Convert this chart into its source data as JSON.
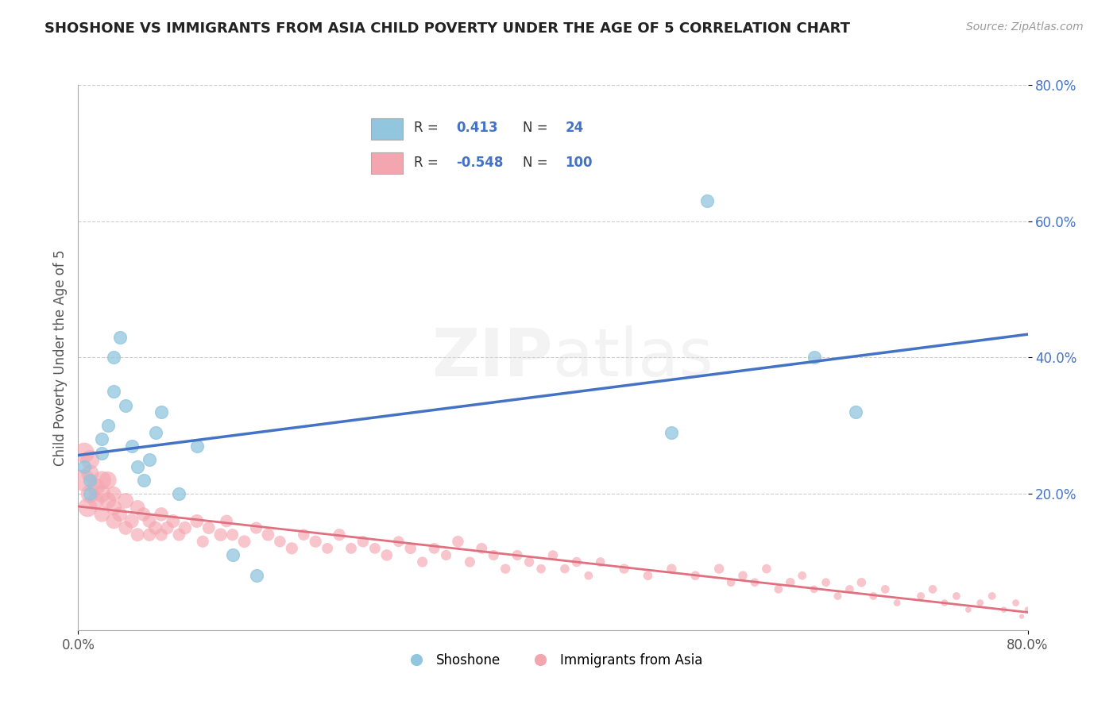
{
  "title": "SHOSHONE VS IMMIGRANTS FROM ASIA CHILD POVERTY UNDER THE AGE OF 5 CORRELATION CHART",
  "source": "Source: ZipAtlas.com",
  "ylabel": "Child Poverty Under the Age of 5",
  "xlim": [
    0.0,
    0.8
  ],
  "ylim": [
    0.0,
    0.8
  ],
  "blue_R": 0.413,
  "blue_N": 24,
  "pink_R": -0.548,
  "pink_N": 100,
  "shoshone_color": "#92C5DE",
  "immigrants_color": "#F4A6B0",
  "blue_line_color": "#4472C4",
  "pink_line_color": "#E07080",
  "watermark_zip": "ZIP",
  "watermark_atlas": "atlas",
  "shoshone_x": [
    0.005,
    0.01,
    0.01,
    0.02,
    0.02,
    0.025,
    0.03,
    0.03,
    0.035,
    0.04,
    0.045,
    0.05,
    0.055,
    0.06,
    0.065,
    0.07,
    0.085,
    0.1,
    0.13,
    0.15,
    0.5,
    0.53,
    0.62,
    0.655
  ],
  "shoshone_y": [
    0.24,
    0.2,
    0.22,
    0.26,
    0.28,
    0.3,
    0.35,
    0.4,
    0.43,
    0.33,
    0.27,
    0.24,
    0.22,
    0.25,
    0.29,
    0.32,
    0.2,
    0.27,
    0.11,
    0.08,
    0.29,
    0.63,
    0.4,
    0.32
  ],
  "shoshone_size": [
    120,
    120,
    120,
    120,
    120,
    120,
    120,
    120,
    120,
    120,
    120,
    120,
    120,
    120,
    120,
    120,
    120,
    120,
    120,
    120,
    120,
    120,
    120,
    120
  ],
  "immigrants_x": [
    0.005,
    0.005,
    0.008,
    0.01,
    0.01,
    0.01,
    0.015,
    0.015,
    0.02,
    0.02,
    0.02,
    0.025,
    0.025,
    0.03,
    0.03,
    0.03,
    0.035,
    0.04,
    0.04,
    0.045,
    0.05,
    0.05,
    0.055,
    0.06,
    0.06,
    0.065,
    0.07,
    0.07,
    0.075,
    0.08,
    0.085,
    0.09,
    0.1,
    0.105,
    0.11,
    0.12,
    0.125,
    0.13,
    0.14,
    0.15,
    0.16,
    0.17,
    0.18,
    0.19,
    0.2,
    0.21,
    0.22,
    0.23,
    0.24,
    0.25,
    0.26,
    0.27,
    0.28,
    0.29,
    0.3,
    0.31,
    0.32,
    0.33,
    0.34,
    0.35,
    0.36,
    0.37,
    0.38,
    0.39,
    0.4,
    0.41,
    0.42,
    0.43,
    0.44,
    0.46,
    0.48,
    0.5,
    0.52,
    0.54,
    0.55,
    0.56,
    0.57,
    0.58,
    0.59,
    0.6,
    0.61,
    0.62,
    0.63,
    0.64,
    0.65,
    0.66,
    0.67,
    0.68,
    0.69,
    0.71,
    0.72,
    0.73,
    0.74,
    0.75,
    0.76,
    0.77,
    0.78,
    0.79,
    0.795,
    0.8
  ],
  "immigrants_y": [
    0.22,
    0.26,
    0.18,
    0.2,
    0.23,
    0.25,
    0.21,
    0.19,
    0.22,
    0.2,
    0.17,
    0.19,
    0.22,
    0.18,
    0.2,
    0.16,
    0.17,
    0.19,
    0.15,
    0.16,
    0.18,
    0.14,
    0.17,
    0.16,
    0.14,
    0.15,
    0.17,
    0.14,
    0.15,
    0.16,
    0.14,
    0.15,
    0.16,
    0.13,
    0.15,
    0.14,
    0.16,
    0.14,
    0.13,
    0.15,
    0.14,
    0.13,
    0.12,
    0.14,
    0.13,
    0.12,
    0.14,
    0.12,
    0.13,
    0.12,
    0.11,
    0.13,
    0.12,
    0.1,
    0.12,
    0.11,
    0.13,
    0.1,
    0.12,
    0.11,
    0.09,
    0.11,
    0.1,
    0.09,
    0.11,
    0.09,
    0.1,
    0.08,
    0.1,
    0.09,
    0.08,
    0.09,
    0.08,
    0.09,
    0.07,
    0.08,
    0.07,
    0.09,
    0.06,
    0.07,
    0.08,
    0.06,
    0.07,
    0.05,
    0.06,
    0.07,
    0.05,
    0.06,
    0.04,
    0.05,
    0.06,
    0.04,
    0.05,
    0.03,
    0.04,
    0.05,
    0.03,
    0.04,
    0.02,
    0.03
  ],
  "immigrants_size": [
    400,
    350,
    300,
    280,
    250,
    300,
    250,
    220,
    280,
    250,
    200,
    220,
    250,
    200,
    180,
    200,
    180,
    200,
    160,
    170,
    180,
    150,
    160,
    150,
    140,
    150,
    160,
    130,
    140,
    150,
    130,
    140,
    150,
    120,
    130,
    140,
    130,
    120,
    130,
    120,
    130,
    110,
    120,
    110,
    120,
    100,
    120,
    100,
    110,
    100,
    110,
    100,
    110,
    90,
    100,
    90,
    110,
    90,
    100,
    90,
    80,
    90,
    80,
    70,
    80,
    70,
    80,
    60,
    70,
    80,
    70,
    80,
    70,
    80,
    60,
    70,
    60,
    70,
    60,
    70,
    60,
    50,
    60,
    50,
    60,
    70,
    50,
    60,
    40,
    50,
    60,
    40,
    50,
    30,
    40,
    50,
    30,
    40,
    20,
    30
  ]
}
